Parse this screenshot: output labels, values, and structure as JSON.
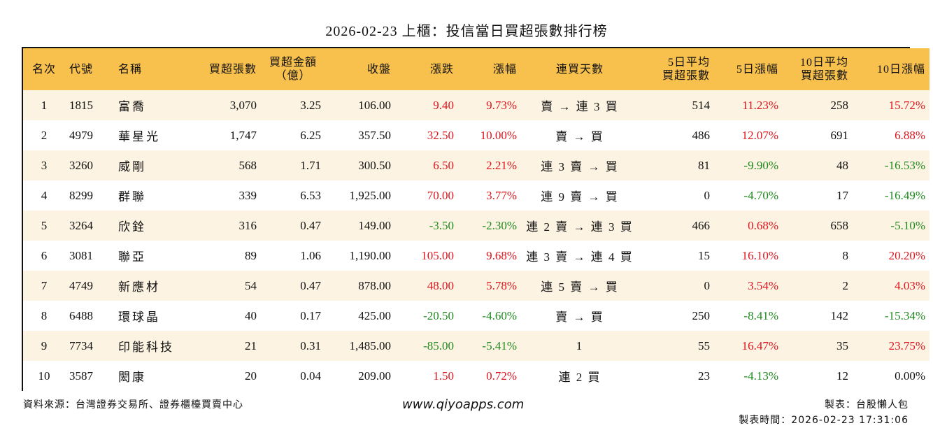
{
  "title": "2026-02-23 上櫃：投信當日買超張數排行榜",
  "headers": {
    "rank": "名次",
    "code": "代號",
    "name": "名稱",
    "net_buy_lots": "買超張數",
    "net_buy_amount_l1": "買超金額",
    "net_buy_amount_l2": "（億）",
    "close": "收盤",
    "change": "漲跌",
    "change_pct": "漲幅",
    "streak": "連買天數",
    "avg5_l1": "5日平均",
    "avg5_l2": "買超張數",
    "pct5": "5日漲幅",
    "avg10_l1": "10日平均",
    "avg10_l2": "買超張數",
    "pct10": "10日漲幅"
  },
  "colors": {
    "header_bg": "#F8C04C",
    "odd_row_bg": "#FDF3E2",
    "up": "#E0141E",
    "down": "#1E8A1E"
  },
  "rows": [
    {
      "rank": "1",
      "code": "1815",
      "name": "富喬",
      "lots": "3,070",
      "amount": "3.25",
      "close": "106.00",
      "change": "9.40",
      "change_dir": "up",
      "pct": "9.73%",
      "pct_dir": "up",
      "streak": "賣 → 連 3 買",
      "avg5": "514",
      "pct5": "11.23%",
      "pct5_dir": "up",
      "avg10": "258",
      "pct10": "15.72%",
      "pct10_dir": "up"
    },
    {
      "rank": "2",
      "code": "4979",
      "name": "華星光",
      "lots": "1,747",
      "amount": "6.25",
      "close": "357.50",
      "change": "32.50",
      "change_dir": "up",
      "pct": "10.00%",
      "pct_dir": "up",
      "streak": "賣 → 買",
      "avg5": "486",
      "pct5": "12.07%",
      "pct5_dir": "up",
      "avg10": "691",
      "pct10": "6.88%",
      "pct10_dir": "up"
    },
    {
      "rank": "3",
      "code": "3260",
      "name": "威剛",
      "lots": "568",
      "amount": "1.71",
      "close": "300.50",
      "change": "6.50",
      "change_dir": "up",
      "pct": "2.21%",
      "pct_dir": "up",
      "streak": "連 3 賣 → 買",
      "avg5": "81",
      "pct5": "-9.90%",
      "pct5_dir": "down",
      "avg10": "48",
      "pct10": "-16.53%",
      "pct10_dir": "down"
    },
    {
      "rank": "4",
      "code": "8299",
      "name": "群聯",
      "lots": "339",
      "amount": "6.53",
      "close": "1,925.00",
      "change": "70.00",
      "change_dir": "up",
      "pct": "3.77%",
      "pct_dir": "up",
      "streak": "連 9 賣 → 買",
      "avg5": "0",
      "pct5": "-4.70%",
      "pct5_dir": "down",
      "avg10": "17",
      "pct10": "-16.49%",
      "pct10_dir": "down"
    },
    {
      "rank": "5",
      "code": "3264",
      "name": "欣銓",
      "lots": "316",
      "amount": "0.47",
      "close": "149.00",
      "change": "-3.50",
      "change_dir": "down",
      "pct": "-2.30%",
      "pct_dir": "down",
      "streak": "連 2 賣 → 連 3 買",
      "avg5": "466",
      "pct5": "0.68%",
      "pct5_dir": "up",
      "avg10": "658",
      "pct10": "-5.10%",
      "pct10_dir": "down"
    },
    {
      "rank": "6",
      "code": "3081",
      "name": "聯亞",
      "lots": "89",
      "amount": "1.06",
      "close": "1,190.00",
      "change": "105.00",
      "change_dir": "up",
      "pct": "9.68%",
      "pct_dir": "up",
      "streak": "連 3 賣 → 連 4 買",
      "avg5": "15",
      "pct5": "16.10%",
      "pct5_dir": "up",
      "avg10": "8",
      "pct10": "20.20%",
      "pct10_dir": "up"
    },
    {
      "rank": "7",
      "code": "4749",
      "name": "新應材",
      "lots": "54",
      "amount": "0.47",
      "close": "878.00",
      "change": "48.00",
      "change_dir": "up",
      "pct": "5.78%",
      "pct_dir": "up",
      "streak": "連 5 賣 → 買",
      "avg5": "0",
      "pct5": "3.54%",
      "pct5_dir": "up",
      "avg10": "2",
      "pct10": "4.03%",
      "pct10_dir": "up"
    },
    {
      "rank": "8",
      "code": "6488",
      "name": "環球晶",
      "lots": "40",
      "amount": "0.17",
      "close": "425.00",
      "change": "-20.50",
      "change_dir": "down",
      "pct": "-4.60%",
      "pct_dir": "down",
      "streak": "賣 → 買",
      "avg5": "250",
      "pct5": "-8.41%",
      "pct5_dir": "down",
      "avg10": "142",
      "pct10": "-15.34%",
      "pct10_dir": "down"
    },
    {
      "rank": "9",
      "code": "7734",
      "name": "印能科技",
      "lots": "21",
      "amount": "0.31",
      "close": "1,485.00",
      "change": "-85.00",
      "change_dir": "down",
      "pct": "-5.41%",
      "pct_dir": "down",
      "streak": "1",
      "avg5": "55",
      "pct5": "16.47%",
      "pct5_dir": "up",
      "avg10": "35",
      "pct10": "23.75%",
      "pct10_dir": "up"
    },
    {
      "rank": "10",
      "code": "3587",
      "name": "閎康",
      "lots": "20",
      "amount": "0.04",
      "close": "209.00",
      "change": "1.50",
      "change_dir": "up",
      "pct": "0.72%",
      "pct_dir": "up",
      "streak": "連 2 買",
      "avg5": "23",
      "pct5": "-4.13%",
      "pct5_dir": "down",
      "avg10": "12",
      "pct10": "0.00%",
      "pct10_dir": "flat"
    }
  ],
  "footer": {
    "source": "資料來源：台灣證券交易所、證券櫃檯買賣中心",
    "website": "www.qiyoapps.com",
    "maker": "製表：台股懶人包",
    "made_time": "製表時間：2026-02-23 17:31:06"
  }
}
